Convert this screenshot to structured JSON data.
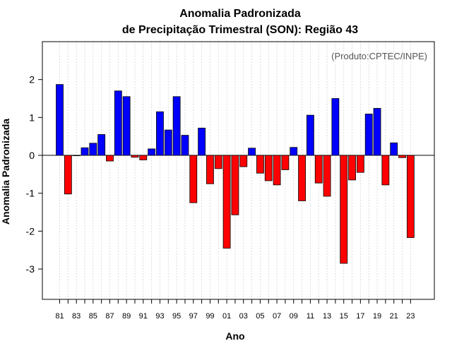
{
  "chart_data": {
    "type": "bar",
    "title": "Anomalia Padronizada",
    "subtitle": "de Precipitação Trimestral (SON): Região 43",
    "xlabel": "Ano",
    "ylabel": "Anomalia Padronizada",
    "annotation": "(Produto:CPTEC/INPE)",
    "ylim": [
      -3.8,
      3.0
    ],
    "yticks": [
      -3,
      -2,
      -1,
      0,
      1,
      2
    ],
    "ytick_labels": [
      "-3",
      "-2",
      "-1",
      "0",
      "1",
      "2"
    ],
    "grid": true,
    "positive_color": "#0000ff",
    "negative_color": "#ff0000",
    "categories": [
      "1981",
      "1982",
      "1983",
      "1984",
      "1985",
      "1986",
      "1987",
      "1988",
      "1989",
      "1990",
      "1991",
      "1992",
      "1993",
      "1994",
      "1995",
      "1996",
      "1997",
      "1998",
      "1999",
      "2000",
      "2001",
      "2002",
      "2003",
      "2004",
      "2005",
      "2006",
      "2007",
      "2008",
      "2009",
      "2010",
      "2011",
      "2012",
      "2013",
      "2014",
      "2015",
      "2016",
      "2017",
      "2018",
      "2019",
      "2020",
      "2021",
      "2022",
      "2023"
    ],
    "values": [
      1.87,
      -1.02,
      0.0,
      0.2,
      0.32,
      0.55,
      -0.15,
      1.7,
      1.55,
      -0.05,
      -0.12,
      0.17,
      1.15,
      0.67,
      1.55,
      0.53,
      -1.25,
      0.72,
      -0.75,
      -0.35,
      -2.45,
      -1.57,
      -0.3,
      0.19,
      -0.47,
      -0.67,
      -0.78,
      -0.38,
      0.21,
      -1.2,
      1.06,
      -0.73,
      -1.08,
      1.5,
      -2.85,
      -0.65,
      -0.45,
      1.09,
      1.24,
      -0.78,
      0.33,
      -0.06,
      -2.17
    ],
    "xtick_labels": [
      "81",
      "83",
      "85",
      "87",
      "89",
      "91",
      "93",
      "95",
      "97",
      "99",
      "01",
      "03",
      "05",
      "07",
      "09",
      "11",
      "13",
      "15",
      "17",
      "19",
      "21",
      "23"
    ]
  }
}
